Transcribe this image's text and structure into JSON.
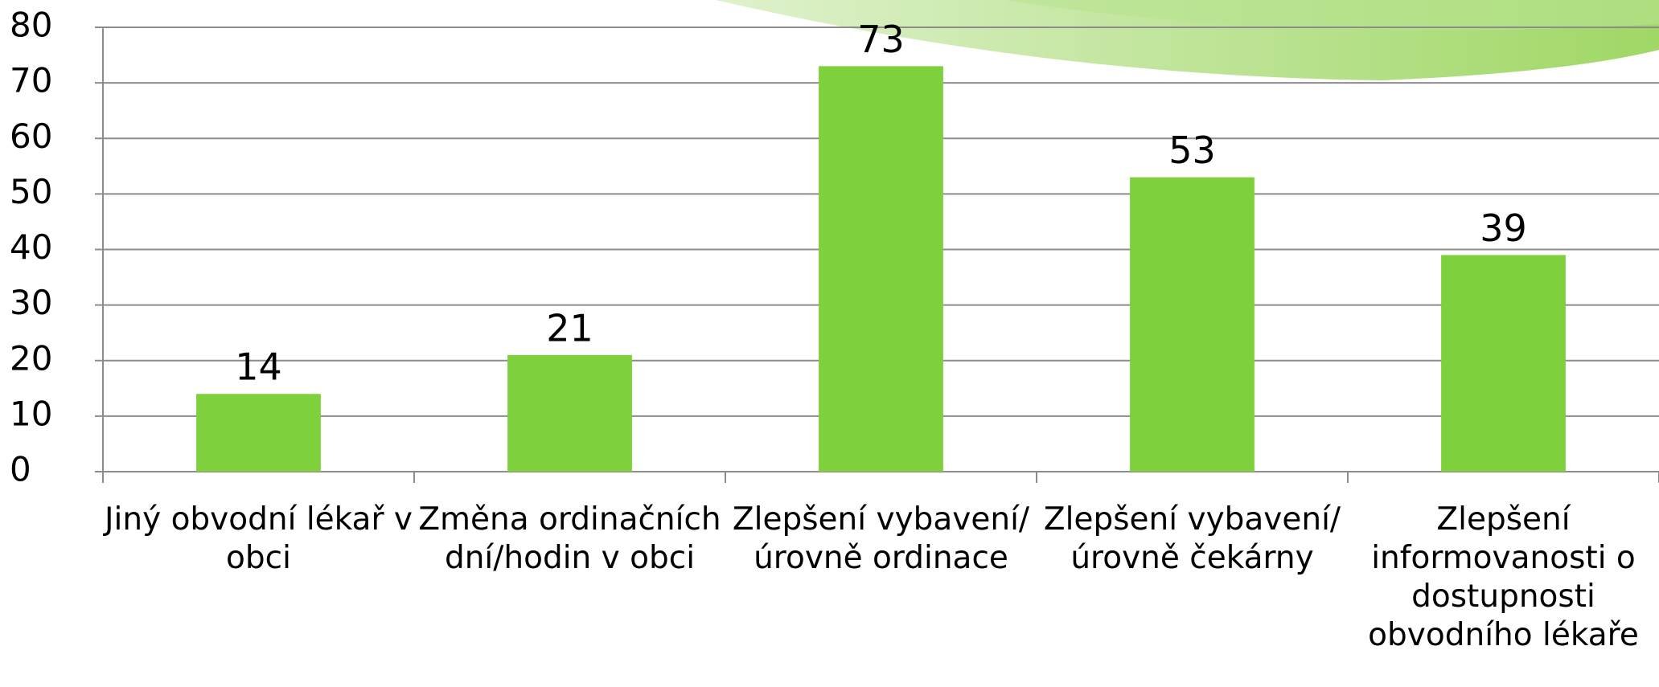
{
  "chart_data": {
    "type": "bar",
    "categories": [
      "Jiný obvodní lékař v obci",
      "Změna ordinačních dní/hodin v obci",
      "Zlepšení vybavení/úrovně ordinace",
      "Zlepšení vybavení/úrovně čekárny",
      "Zlepšení informovanosti o dostupnosti obvodního lékaře"
    ],
    "values": [
      14,
      21,
      73,
      53,
      39
    ],
    "color": "#7ed03c",
    "ylim": [
      0,
      80
    ],
    "yticks": [
      0,
      10,
      20,
      30,
      40,
      50,
      60,
      70,
      80
    ],
    "grid": true
  }
}
